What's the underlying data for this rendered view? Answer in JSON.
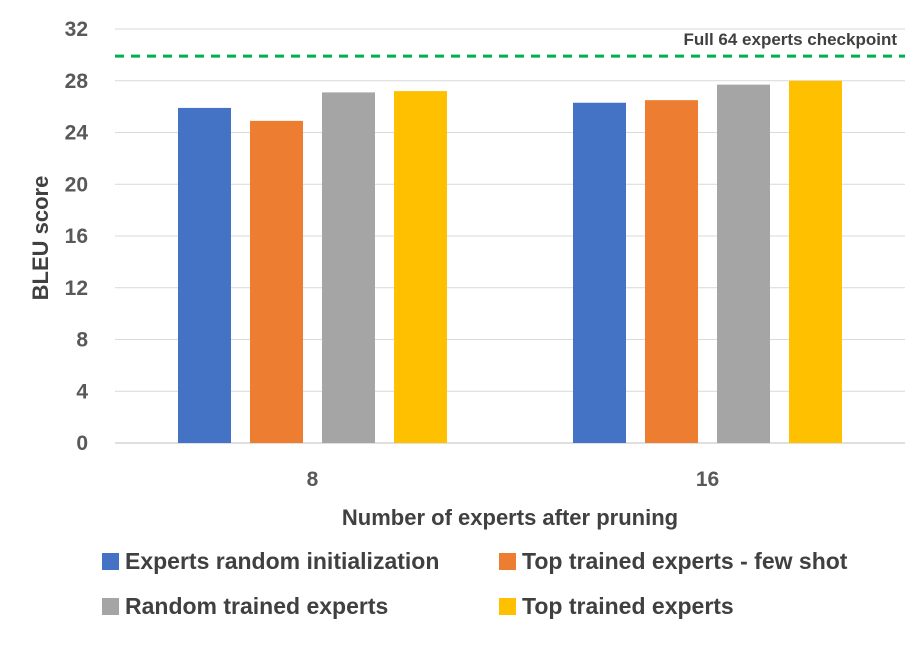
{
  "chart_data": {
    "type": "bar",
    "title": "",
    "xlabel": "Number of experts after pruning",
    "ylabel": "BLEU score",
    "categories": [
      "8",
      "16"
    ],
    "ylim": [
      0,
      32
    ],
    "yticks": [
      0,
      4,
      8,
      12,
      16,
      20,
      24,
      28,
      32
    ],
    "grid": true,
    "legend_position": "bottom",
    "series": [
      {
        "name": "Experts random initialization",
        "color": "#4472C4",
        "values": [
          25.9,
          26.3
        ]
      },
      {
        "name": "Top trained experts - few shot",
        "color": "#ED7D31",
        "values": [
          24.9,
          26.5
        ]
      },
      {
        "name": "Random trained experts",
        "color": "#A5A5A5",
        "values": [
          27.1,
          27.7
        ]
      },
      {
        "name": "Top trained experts",
        "color": "#FFC000",
        "values": [
          27.2,
          28.0
        ]
      }
    ],
    "reference_line": {
      "label": "Full 64 experts checkpoint",
      "value": 29.9,
      "color": "#00B050",
      "style": "dashed"
    }
  }
}
